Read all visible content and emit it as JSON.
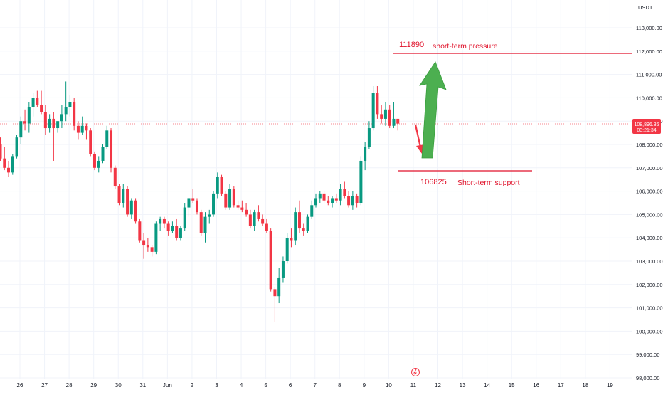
{
  "currency_label": "USDT",
  "current_price": {
    "price_label": "108,896.36",
    "countdown": "03:21:34",
    "color": "#f23645"
  },
  "annotations": {
    "pressure_value": "111890",
    "pressure_text": "short-term pressure",
    "support_value": "106825",
    "support_text": "Short-term support",
    "line_color": "#e0122a",
    "text_color": "#e0122a",
    "arrow_up_color": "#4caf50",
    "arrow_down_color": "#f23645"
  },
  "colors": {
    "up": "#089981",
    "down": "#f23645",
    "grid": "#f0f3fa",
    "axis_text": "#131722"
  },
  "chart_data": {
    "type": "candlestick",
    "title": "",
    "xlabel": "",
    "ylabel": "",
    "ylim": [
      97900,
      113700
    ],
    "y_ticks": [
      "98,000.00",
      "99,000.00",
      "100,000.00",
      "101,000.00",
      "102,000.00",
      "103,000.00",
      "104,000.00",
      "105,000.00",
      "106,000.00",
      "107,000.00",
      "108,000.00",
      "109,000.00",
      "110,000.00",
      "111,000.00",
      "112,000.00",
      "113,000.00"
    ],
    "x_ticks": [
      "26",
      "27",
      "28",
      "29",
      "30",
      "31",
      "Jun",
      "2",
      "3",
      "4",
      "5",
      "6",
      "7",
      "8",
      "9",
      "10",
      "11",
      "12",
      "13",
      "14",
      "15",
      "16",
      "17",
      "18",
      "19"
    ],
    "bar_interval": "4h",
    "ohlc": [
      [
        108000,
        108300,
        107300,
        107400
      ],
      [
        107400,
        107900,
        106900,
        107000
      ],
      [
        107000,
        107300,
        106600,
        106800
      ],
      [
        106800,
        107600,
        106700,
        107500
      ],
      [
        107500,
        108400,
        107400,
        108300
      ],
      [
        108300,
        109200,
        108000,
        109000
      ],
      [
        109000,
        109500,
        108600,
        108900
      ],
      [
        108900,
        109800,
        108500,
        109600
      ],
      [
        109600,
        110200,
        109200,
        110000
      ],
      [
        110000,
        110300,
        109600,
        109700
      ],
      [
        109700,
        110300,
        109300,
        109400
      ],
      [
        109400,
        109700,
        108400,
        108700
      ],
      [
        108700,
        109300,
        108500,
        109100
      ],
      [
        109100,
        109400,
        107300,
        108700
      ],
      [
        108700,
        109000,
        108500,
        109000
      ],
      [
        109000,
        109700,
        108700,
        109300
      ],
      [
        109300,
        110700,
        109000,
        109600
      ],
      [
        109600,
        110100,
        109200,
        109800
      ],
      [
        109800,
        110000,
        108600,
        108800
      ],
      [
        108800,
        109000,
        108200,
        108500
      ],
      [
        108500,
        109200,
        108400,
        108800
      ],
      [
        108800,
        108900,
        108200,
        108600
      ],
      [
        108600,
        108700,
        107500,
        107600
      ],
      [
        107600,
        107700,
        106900,
        107000
      ],
      [
        107000,
        107500,
        106800,
        107300
      ],
      [
        107300,
        108000,
        107200,
        107900
      ],
      [
        107900,
        108800,
        107800,
        108600
      ],
      [
        108600,
        108700,
        106800,
        107000
      ],
      [
        107000,
        107100,
        106100,
        106200
      ],
      [
        106200,
        106300,
        105400,
        105500
      ],
      [
        105500,
        106300,
        105300,
        106100
      ],
      [
        106100,
        106200,
        104900,
        105000
      ],
      [
        105000,
        105700,
        104800,
        105600
      ],
      [
        105600,
        105700,
        104600,
        104700
      ],
      [
        104700,
        104800,
        103800,
        103900
      ],
      [
        103900,
        104200,
        103100,
        103700
      ],
      [
        103700,
        104000,
        103400,
        103600
      ],
      [
        103600,
        103700,
        103200,
        103400
      ],
      [
        103400,
        104700,
        103300,
        104600
      ],
      [
        104600,
        104900,
        104300,
        104800
      ],
      [
        104800,
        104900,
        104400,
        104600
      ],
      [
        104600,
        104700,
        104100,
        104300
      ],
      [
        104300,
        104700,
        104200,
        104500
      ],
      [
        104500,
        104800,
        103900,
        104000
      ],
      [
        104000,
        104500,
        103900,
        104400
      ],
      [
        104400,
        105500,
        104300,
        105300
      ],
      [
        105300,
        105700,
        104900,
        105700
      ],
      [
        105700,
        106100,
        105500,
        105600
      ],
      [
        105600,
        105700,
        105000,
        105100
      ],
      [
        105100,
        105200,
        104100,
        104200
      ],
      [
        104200,
        105100,
        103800,
        104900
      ],
      [
        104900,
        105200,
        104600,
        105000
      ],
      [
        105000,
        106000,
        104900,
        105900
      ],
      [
        105900,
        106800,
        105700,
        106600
      ],
      [
        106600,
        106700,
        105800,
        105900
      ],
      [
        105900,
        106000,
        105200,
        105300
      ],
      [
        105300,
        106300,
        105200,
        106100
      ],
      [
        106100,
        106200,
        105300,
        105400
      ],
      [
        105400,
        105600,
        105200,
        105300
      ],
      [
        105300,
        105600,
        105100,
        105200
      ],
      [
        105200,
        105500,
        104900,
        105000
      ],
      [
        105000,
        105200,
        104400,
        104500
      ],
      [
        104500,
        105200,
        104300,
        105100
      ],
      [
        105100,
        105400,
        104700,
        104800
      ],
      [
        104800,
        105000,
        104500,
        104600
      ],
      [
        104600,
        104800,
        104200,
        104300
      ],
      [
        104300,
        104400,
        101700,
        101800
      ],
      [
        101800,
        101900,
        100400,
        101500
      ],
      [
        101500,
        102700,
        101200,
        102300
      ],
      [
        102300,
        103200,
        102100,
        103000
      ],
      [
        103000,
        104200,
        102900,
        104000
      ],
      [
        104000,
        104400,
        103600,
        103900
      ],
      [
        103900,
        105300,
        103700,
        105100
      ],
      [
        105100,
        105600,
        104200,
        104400
      ],
      [
        104400,
        104600,
        104100,
        104300
      ],
      [
        104300,
        105000,
        104200,
        104900
      ],
      [
        104900,
        105600,
        104800,
        105400
      ],
      [
        105400,
        105900,
        105300,
        105700
      ],
      [
        105700,
        106000,
        105500,
        105900
      ],
      [
        105900,
        106000,
        105500,
        105600
      ],
      [
        105600,
        105800,
        105400,
        105500
      ],
      [
        105500,
        105800,
        105300,
        105700
      ],
      [
        105700,
        105900,
        105500,
        105600
      ],
      [
        105600,
        106300,
        105400,
        106100
      ],
      [
        106100,
        106400,
        105700,
        105800
      ],
      [
        105800,
        106000,
        105300,
        105400
      ],
      [
        105400,
        106000,
        105200,
        105800
      ],
      [
        105800,
        105900,
        105300,
        105500
      ],
      [
        105500,
        107500,
        105400,
        107300
      ],
      [
        107300,
        108100,
        106900,
        107900
      ],
      [
        107900,
        109000,
        107800,
        108700
      ],
      [
        108700,
        110500,
        108600,
        110200
      ],
      [
        110200,
        110500,
        109100,
        109300
      ],
      [
        109300,
        109700,
        108900,
        109100
      ],
      [
        109100,
        109800,
        108800,
        109500
      ],
      [
        109500,
        109700,
        108700,
        108800
      ],
      [
        108800,
        109800,
        108700,
        109100
      ],
      [
        109100,
        109100,
        108600,
        108896
      ]
    ]
  }
}
